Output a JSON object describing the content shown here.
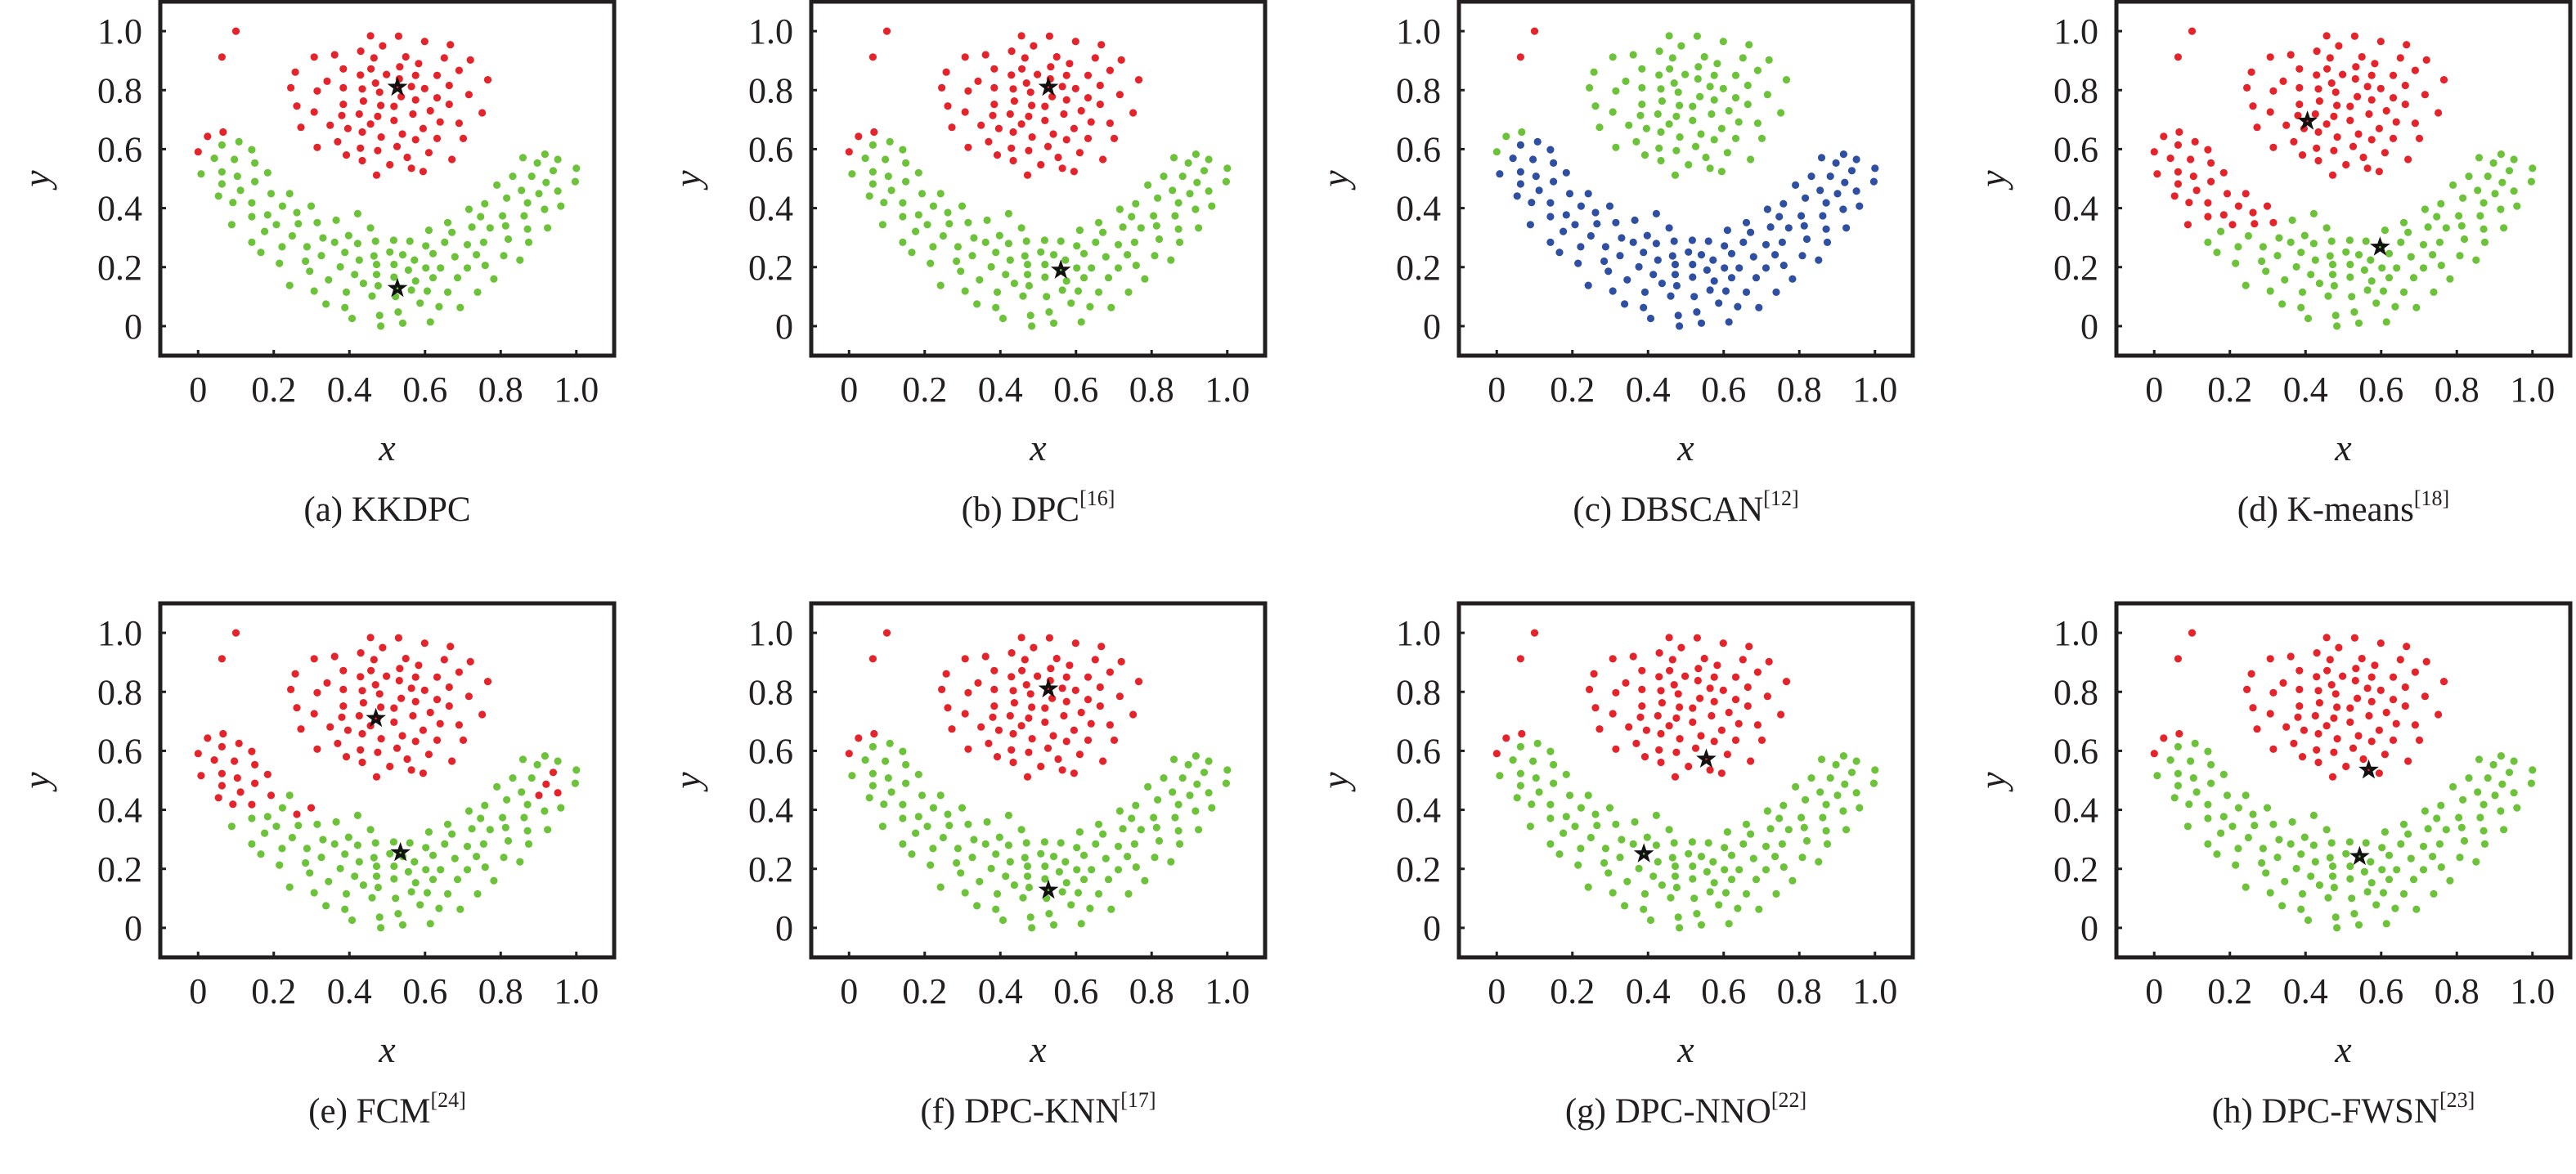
{
  "figure": {
    "colors": {
      "r": "#e5232a",
      "g": "#6cc33a",
      "b": "#2f4fa2",
      "axis": "#231f20",
      "star": "#111111"
    }
  },
  "chart_data": {
    "type": "scatter",
    "title": "",
    "xlabel": "x",
    "ylabel": "y",
    "xlim": [
      -0.1,
      1.1
    ],
    "ylim": [
      -0.1,
      1.1
    ],
    "xticks": [
      "0",
      "0.2",
      "0.4",
      "0.6",
      "0.8",
      "1.0"
    ],
    "yticks": [
      "0",
      "0.2",
      "0.4",
      "0.6",
      "0.8",
      "1.0"
    ],
    "grid": false,
    "legend": "none",
    "points": [
      [
        0.1,
        1.0
      ],
      [
        0.063,
        0.912
      ],
      [
        0.456,
        0.984
      ],
      [
        0.53,
        0.983
      ],
      [
        0.599,
        0.965
      ],
      [
        0.667,
        0.954
      ],
      [
        0.488,
        0.95
      ],
      [
        0.307,
        0.912
      ],
      [
        0.361,
        0.92
      ],
      [
        0.43,
        0.932
      ],
      [
        0.465,
        0.909
      ],
      [
        0.549,
        0.913
      ],
      [
        0.651,
        0.909
      ],
      [
        0.72,
        0.902
      ],
      [
        0.257,
        0.861
      ],
      [
        0.384,
        0.872
      ],
      [
        0.457,
        0.872
      ],
      [
        0.533,
        0.879
      ],
      [
        0.583,
        0.89
      ],
      [
        0.69,
        0.867
      ],
      [
        0.429,
        0.851
      ],
      [
        0.498,
        0.853
      ],
      [
        0.575,
        0.85
      ],
      [
        0.632,
        0.85
      ],
      [
        0.341,
        0.83
      ],
      [
        0.469,
        0.824
      ],
      [
        0.532,
        0.838
      ],
      [
        0.766,
        0.835
      ],
      [
        0.245,
        0.808
      ],
      [
        0.315,
        0.797
      ],
      [
        0.384,
        0.808
      ],
      [
        0.434,
        0.804
      ],
      [
        0.48,
        0.793
      ],
      [
        0.564,
        0.812
      ],
      [
        0.599,
        0.805
      ],
      [
        0.664,
        0.816
      ],
      [
        0.716,
        0.785
      ],
      [
        0.261,
        0.746
      ],
      [
        0.384,
        0.752
      ],
      [
        0.437,
        0.763
      ],
      [
        0.483,
        0.748
      ],
      [
        0.518,
        0.745
      ],
      [
        0.537,
        0.778
      ],
      [
        0.575,
        0.767
      ],
      [
        0.632,
        0.774
      ],
      [
        0.664,
        0.752
      ],
      [
        0.307,
        0.726
      ],
      [
        0.38,
        0.714
      ],
      [
        0.426,
        0.719
      ],
      [
        0.475,
        0.711
      ],
      [
        0.568,
        0.719
      ],
      [
        0.614,
        0.73
      ],
      [
        0.751,
        0.723
      ],
      [
        0.272,
        0.674
      ],
      [
        0.349,
        0.681
      ],
      [
        0.396,
        0.67
      ],
      [
        0.456,
        0.685
      ],
      [
        0.518,
        0.697
      ],
      [
        0.595,
        0.67
      ],
      [
        0.64,
        0.692
      ],
      [
        0.69,
        0.688
      ],
      [
        0.434,
        0.658
      ],
      [
        0.484,
        0.641
      ],
      [
        0.54,
        0.651
      ],
      [
        0.575,
        0.632
      ],
      [
        0.632,
        0.636
      ],
      [
        0.701,
        0.636
      ],
      [
        0.315,
        0.606
      ],
      [
        0.369,
        0.625
      ],
      [
        0.429,
        0.603
      ],
      [
        0.475,
        0.595
      ],
      [
        0.526,
        0.609
      ],
      [
        0.61,
        0.588
      ],
      [
        0.392,
        0.58
      ],
      [
        0.434,
        0.561
      ],
      [
        0.553,
        0.572
      ],
      [
        0.671,
        0.565
      ],
      [
        0.507,
        0.547
      ],
      [
        0.564,
        0.535
      ],
      [
        0.595,
        0.524
      ],
      [
        0.472,
        0.512
      ],
      [
        0.0,
        0.591
      ],
      [
        0.025,
        0.643
      ],
      [
        0.066,
        0.658
      ],
      [
        0.063,
        0.614
      ],
      [
        0.108,
        0.625
      ],
      [
        0.142,
        0.598
      ],
      [
        0.043,
        0.569
      ],
      [
        0.096,
        0.565
      ],
      [
        0.15,
        0.553
      ],
      [
        0.008,
        0.516
      ],
      [
        0.063,
        0.523
      ],
      [
        0.104,
        0.508
      ],
      [
        0.184,
        0.52
      ],
      [
        0.063,
        0.482
      ],
      [
        0.15,
        0.49
      ],
      [
        0.112,
        0.46
      ],
      [
        0.054,
        0.441
      ],
      [
        0.092,
        0.419
      ],
      [
        0.142,
        0.418
      ],
      [
        0.193,
        0.449
      ],
      [
        0.242,
        0.449
      ],
      [
        0.223,
        0.407
      ],
      [
        0.299,
        0.407
      ],
      [
        0.261,
        0.385
      ],
      [
        0.142,
        0.371
      ],
      [
        0.184,
        0.377
      ],
      [
        0.089,
        0.344
      ],
      [
        0.207,
        0.344
      ],
      [
        0.265,
        0.347
      ],
      [
        0.315,
        0.351
      ],
      [
        0.365,
        0.359
      ],
      [
        0.422,
        0.381
      ],
      [
        0.176,
        0.321
      ],
      [
        0.249,
        0.306
      ],
      [
        0.142,
        0.284
      ],
      [
        0.33,
        0.299
      ],
      [
        0.361,
        0.284
      ],
      [
        0.398,
        0.307
      ],
      [
        0.422,
        0.28
      ],
      [
        0.456,
        0.333
      ],
      [
        0.469,
        0.288
      ],
      [
        0.517,
        0.291
      ],
      [
        0.56,
        0.288
      ],
      [
        0.61,
        0.325
      ],
      [
        0.652,
        0.284
      ],
      [
        0.66,
        0.351
      ],
      [
        0.671,
        0.318
      ],
      [
        0.716,
        0.396
      ],
      [
        0.747,
        0.371
      ],
      [
        0.758,
        0.415
      ],
      [
        0.79,
        0.478
      ],
      [
        0.816,
        0.434
      ],
      [
        0.832,
        0.508
      ],
      [
        0.855,
        0.46
      ],
      [
        0.871,
        0.418
      ],
      [
        0.882,
        0.508
      ],
      [
        0.859,
        0.571
      ],
      [
        0.897,
        0.553
      ],
      [
        0.917,
        0.583
      ],
      [
        0.951,
        0.565
      ],
      [
        0.939,
        0.527
      ],
      [
        0.92,
        0.487
      ],
      [
        0.901,
        0.449
      ],
      [
        0.951,
        0.458
      ],
      [
        1.0,
        0.535
      ],
      [
        0.997,
        0.49
      ],
      [
        0.959,
        0.407
      ],
      [
        0.916,
        0.396
      ],
      [
        0.805,
        0.374
      ],
      [
        0.862,
        0.374
      ],
      [
        0.813,
        0.34
      ],
      [
        0.871,
        0.329
      ],
      [
        0.924,
        0.333
      ],
      [
        0.82,
        0.295
      ],
      [
        0.874,
        0.284
      ],
      [
        0.851,
        0.224
      ],
      [
        0.808,
        0.239
      ],
      [
        0.772,
        0.333
      ],
      [
        0.755,
        0.284
      ],
      [
        0.724,
        0.336
      ],
      [
        0.712,
        0.276
      ],
      [
        0.736,
        0.242
      ],
      [
        0.759,
        0.206
      ],
      [
        0.712,
        0.197
      ],
      [
        0.782,
        0.16
      ],
      [
        0.739,
        0.115
      ],
      [
        0.686,
        0.164
      ],
      [
        0.679,
        0.235
      ],
      [
        0.641,
        0.197
      ],
      [
        0.602,
        0.272
      ],
      [
        0.621,
        0.246
      ],
      [
        0.602,
        0.197
      ],
      [
        0.621,
        0.164
      ],
      [
        0.66,
        0.115
      ],
      [
        0.606,
        0.119
      ],
      [
        0.637,
        0.066
      ],
      [
        0.693,
        0.063
      ],
      [
        0.614,
        0.014
      ],
      [
        0.587,
        0.078
      ],
      [
        0.564,
        0.122
      ],
      [
        0.575,
        0.153
      ],
      [
        0.556,
        0.19
      ],
      [
        0.572,
        0.224
      ],
      [
        0.541,
        0.242
      ],
      [
        0.518,
        0.209
      ],
      [
        0.507,
        0.251
      ],
      [
        0.518,
        0.166
      ],
      [
        0.522,
        0.1
      ],
      [
        0.529,
        0.048
      ],
      [
        0.541,
        0.01
      ],
      [
        0.483,
        0.0
      ],
      [
        0.48,
        0.036
      ],
      [
        0.46,
        0.102
      ],
      [
        0.476,
        0.137
      ],
      [
        0.472,
        0.175
      ],
      [
        0.472,
        0.209
      ],
      [
        0.465,
        0.238
      ],
      [
        0.426,
        0.224
      ],
      [
        0.414,
        0.175
      ],
      [
        0.437,
        0.145
      ],
      [
        0.392,
        0.115
      ],
      [
        0.388,
        0.063
      ],
      [
        0.407,
        0.026
      ],
      [
        0.338,
        0.075
      ],
      [
        0.307,
        0.119
      ],
      [
        0.345,
        0.157
      ],
      [
        0.376,
        0.201
      ],
      [
        0.388,
        0.25
      ],
      [
        0.326,
        0.239
      ],
      [
        0.295,
        0.186
      ],
      [
        0.284,
        0.22
      ],
      [
        0.288,
        0.269
      ],
      [
        0.242,
        0.138
      ],
      [
        0.215,
        0.213
      ],
      [
        0.222,
        0.269
      ],
      [
        0.166,
        0.25
      ]
    ],
    "groups": {
      "outliers": [
        0,
        2
      ],
      "ring": [
        2,
        84
      ],
      "crescent": [
        84,
        239
      ]
    },
    "panels": [
      {
        "id": "a",
        "label": "(a) KKDPC",
        "ref": "",
        "colors": {
          "outliers": "r",
          "ring": "r",
          "crescent": "g"
        },
        "overrides": [],
        "centers": [
          [
            0.527,
            0.81
          ],
          [
            0.527,
            0.128
          ]
        ]
      },
      {
        "id": "b",
        "label": "(b) DPC",
        "ref": "[16]",
        "colors": {
          "outliers": "r",
          "ring": "r",
          "crescent": "g"
        },
        "overrides": [],
        "centers": [
          [
            0.527,
            0.81
          ],
          [
            0.56,
            0.19
          ]
        ]
      },
      {
        "id": "c",
        "label": "(c) DBSCAN",
        "ref": "[12]",
        "colors": {
          "outliers": "r",
          "ring": "g",
          "crescent": "b"
        },
        "overrides": [],
        "centers": []
      },
      {
        "id": "d",
        "label": "(d) K-means",
        "ref": "[18]",
        "colors": {
          "outliers": "r",
          "ring": "r",
          "crescent": "g"
        },
        "overrides": [
          {
            "range": [
              84,
              111
            ],
            "color": "r"
          }
        ],
        "centers": [
          [
            0.405,
            0.695
          ],
          [
            0.597,
            0.268
          ]
        ]
      },
      {
        "id": "e",
        "label": "(e) FCM",
        "ref": "[24]",
        "colors": {
          "outliers": "r",
          "ring": "r",
          "crescent": "g"
        },
        "overrides": [
          {
            "range": [
              84,
              101
            ],
            "color": "r"
          },
          {
            "range": [
              103,
              105
            ],
            "color": "r"
          },
          {
            "range": [
              141,
              145
            ],
            "color": "r"
          }
        ],
        "centers": [
          [
            0.47,
            0.71
          ],
          [
            0.535,
            0.255
          ]
        ]
      },
      {
        "id": "f",
        "label": "(f) DPC-KNN",
        "ref": "[17]",
        "colors": {
          "outliers": "r",
          "ring": "r",
          "crescent": "g"
        },
        "overrides": [],
        "centers": [
          [
            0.527,
            0.81
          ],
          [
            0.527,
            0.128
          ]
        ]
      },
      {
        "id": "g",
        "label": "(g) DPC-NNO",
        "ref": "[22]",
        "colors": {
          "outliers": "r",
          "ring": "r",
          "crescent": "g"
        },
        "overrides": [],
        "centers": [
          [
            0.554,
            0.572
          ],
          [
            0.389,
            0.251
          ]
        ]
      },
      {
        "id": "h",
        "label": "(h) DPC-FWSN",
        "ref": "[23]",
        "colors": {
          "outliers": "r",
          "ring": "r",
          "crescent": "g"
        },
        "overrides": [],
        "centers": [
          [
            0.567,
            0.535
          ],
          [
            0.543,
            0.242
          ]
        ]
      }
    ]
  }
}
